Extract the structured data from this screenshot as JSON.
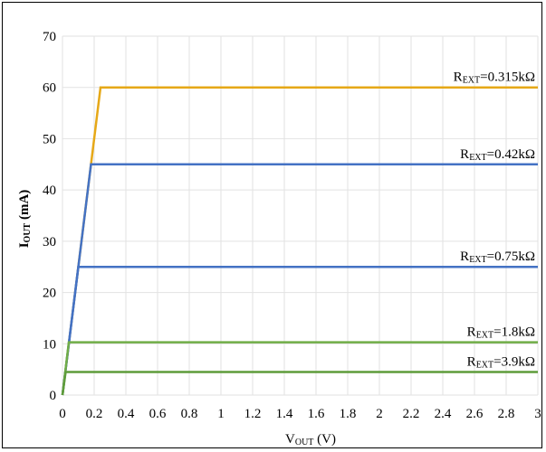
{
  "chart_data": {
    "type": "line",
    "xlabel": {
      "main": "V",
      "sub": "OUT",
      "rest": " (V)"
    },
    "ylabel": {
      "main": "I",
      "sub": "OUT",
      "rest": " (mA)"
    },
    "xlim": [
      0,
      3
    ],
    "ylim": [
      0,
      70
    ],
    "x_ticks": [
      "0",
      "0.2",
      "0.4",
      "0.6",
      "0.8",
      "1",
      "1.2",
      "1.4",
      "1.6",
      "1.8",
      "2",
      "2.2",
      "2.4",
      "2.6",
      "2.8",
      "3"
    ],
    "x_tick_values": [
      0,
      0.2,
      0.4,
      0.6,
      0.8,
      1.0,
      1.2,
      1.4,
      1.6,
      1.8,
      2.0,
      2.2,
      2.4,
      2.6,
      2.8,
      3.0
    ],
    "y_ticks": [
      "0",
      "10",
      "20",
      "30",
      "40",
      "50",
      "60",
      "70"
    ],
    "y_tick_values": [
      0,
      10,
      20,
      30,
      40,
      50,
      60,
      70
    ],
    "grid": true,
    "series": [
      {
        "label_main": "R",
        "label_sub": "EXT",
        "label_rest": "=0.315kΩ",
        "color": "#E6A817",
        "x": [
          0,
          0.24,
          3.0
        ],
        "y": [
          0,
          60,
          60
        ]
      },
      {
        "label_main": "R",
        "label_sub": "EXT",
        "label_rest": "=0.42kΩ",
        "color": "#4472C4",
        "x": [
          0,
          0.18,
          3.0
        ],
        "y": [
          0,
          45,
          45
        ]
      },
      {
        "label_main": "R",
        "label_sub": "EXT",
        "label_rest": "=0.75kΩ",
        "color": "#4472C4",
        "x": [
          0,
          0.1,
          3.0
        ],
        "y": [
          0,
          25,
          25
        ]
      },
      {
        "label_main": "R",
        "label_sub": "EXT",
        "label_rest": "=1.8kΩ",
        "color": "#70AD47",
        "x": [
          0,
          0.04,
          3.0
        ],
        "y": [
          0,
          10.3,
          10.3
        ]
      },
      {
        "label_main": "R",
        "label_sub": "EXT",
        "label_rest": "=3.9kΩ",
        "color": "#5E9C3A",
        "x": [
          0,
          0.02,
          3.0
        ],
        "y": [
          0,
          4.5,
          4.5
        ]
      }
    ]
  }
}
